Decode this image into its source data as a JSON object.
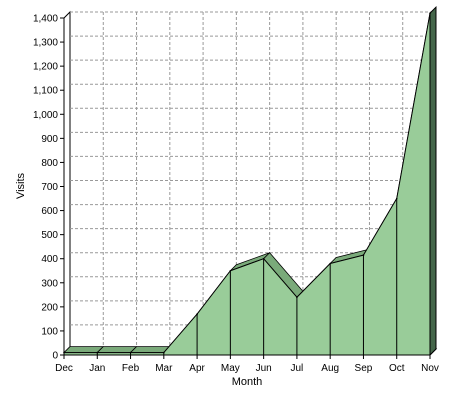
{
  "chart_data": {
    "type": "area",
    "categories": [
      "Dec",
      "Jan",
      "Feb",
      "Mar",
      "Apr",
      "May",
      "Jun",
      "Jul",
      "Aug",
      "Sep",
      "Oct",
      "Nov"
    ],
    "series": [
      {
        "values": [
          10,
          10,
          10,
          10,
          170,
          350,
          400,
          240,
          380,
          415,
          650,
          1420
        ]
      }
    ],
    "xlabel": "Month",
    "ylabel": "Visits",
    "ylim": [
      0,
      1400
    ],
    "yticks": [
      0,
      100,
      200,
      300,
      400,
      500,
      600,
      700,
      800,
      900,
      1000,
      1100,
      1200,
      1300,
      1400
    ],
    "ytick_labels": [
      "0",
      "100",
      "200",
      "300",
      "400",
      "500",
      "600",
      "700",
      "800",
      "900",
      "1,000",
      "1,100",
      "1,200",
      "1,300",
      "1,400"
    ],
    "grid": true,
    "style": "3d-area",
    "colors": {
      "fill": "#99cc99",
      "top_face": "#7aaa7a",
      "side_face": "#44664a",
      "outline": "#000000",
      "grid": "#999999",
      "frame": "#000000",
      "wall_side": "#555555"
    }
  }
}
